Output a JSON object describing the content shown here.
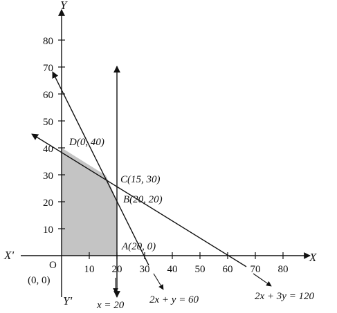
{
  "axes": {
    "x_name": "X",
    "x_neg_name": "X'",
    "y_name": "Y",
    "y_neg_name": "Y'",
    "origin_label": "O",
    "origin_coord": "(0, 0)",
    "x_ticks": [
      "10",
      "20",
      "30",
      "40",
      "50",
      "60",
      "70",
      "80"
    ],
    "y_ticks": [
      "10",
      "20",
      "30",
      "40",
      "50",
      "60",
      "70",
      "80"
    ]
  },
  "points": {
    "D": "D(0, 40)",
    "C": "C(15, 30)",
    "B": "B(20, 20)",
    "A": "A(20, 0)"
  },
  "lines": {
    "vertical": "x = 20",
    "steep": "2x + y = 60",
    "shallow": "2x + 3y = 120"
  },
  "colors": {
    "shade": "#c4c4c4",
    "ink": "#111111"
  }
}
